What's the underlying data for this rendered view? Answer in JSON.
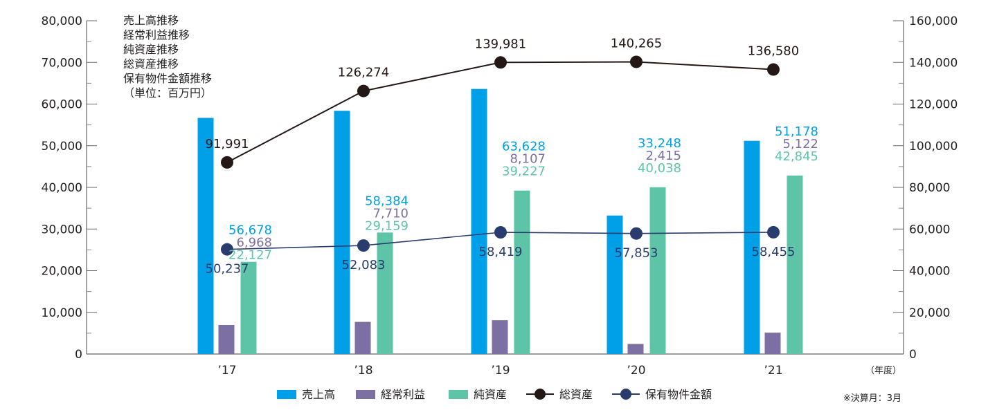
{
  "chart_data": {
    "type": "bar",
    "categories": [
      "’17",
      "’18",
      "’19",
      "’20",
      "’21"
    ],
    "left_axis": {
      "ylim": [
        0,
        80000
      ],
      "ticks": [
        "0",
        "10,000",
        "20,000",
        "30,000",
        "40,000",
        "50,000",
        "60,000",
        "70,000",
        "80,000"
      ]
    },
    "right_axis": {
      "ylim": [
        0,
        160000
      ],
      "ticks": [
        "0",
        "20,000",
        "40,000",
        "60,000",
        "80,000",
        "100,000",
        "120,000",
        "140,000",
        "160,000"
      ]
    },
    "series": [
      {
        "name": "売上高",
        "type": "bar",
        "axis": "left",
        "color": "#00a0e9",
        "values": [
          56678,
          58384,
          63628,
          33248,
          51178
        ],
        "labels": [
          "56,678",
          "58,384",
          "63,628",
          "33,248",
          "51,178"
        ]
      },
      {
        "name": "経常利益",
        "type": "bar",
        "axis": "left",
        "color": "#7b6fa3",
        "values": [
          6968,
          7710,
          8107,
          2415,
          5122
        ],
        "labels": [
          "6,968",
          "7,710",
          "8,107",
          "2,415",
          "5,122"
        ]
      },
      {
        "name": "純資産",
        "type": "bar",
        "axis": "left",
        "color": "#5ec4a7",
        "values": [
          22127,
          29159,
          39227,
          40038,
          42845
        ],
        "labels": [
          "22,127",
          "29,159",
          "39,227",
          "40,038",
          "42,845"
        ]
      },
      {
        "name": "総資産",
        "type": "line",
        "axis": "right",
        "color": "#231815",
        "values": [
          91991,
          126274,
          139981,
          140265,
          136580
        ],
        "labels": [
          "91,991",
          "126,274",
          "139,981",
          "140,265",
          "136,580"
        ]
      },
      {
        "name": "保有物件金額",
        "type": "line",
        "axis": "right",
        "color": "#2a3b6e",
        "values": [
          50237,
          52083,
          58419,
          57853,
          58455
        ],
        "labels": [
          "50,237",
          "52,083",
          "58,419",
          "57,853",
          "58,455"
        ]
      }
    ],
    "title_block": [
      {
        "text": "売上高推移",
        "color": "#00a0e9"
      },
      {
        "text": "経常利益推移",
        "color": "#7b6fa3"
      },
      {
        "text": "純資産推移",
        "color": "#5ec4a7"
      },
      {
        "text": "総資産推移",
        "color": "#231815"
      },
      {
        "text": "保有物件金額推移",
        "color": "#2a3b6e"
      },
      {
        "text": "（単位：百万円）",
        "color": "#231815"
      }
    ],
    "x_unit": "（年度）",
    "note": "※決算月：3月",
    "legend_position": "bottom",
    "grid": false
  }
}
